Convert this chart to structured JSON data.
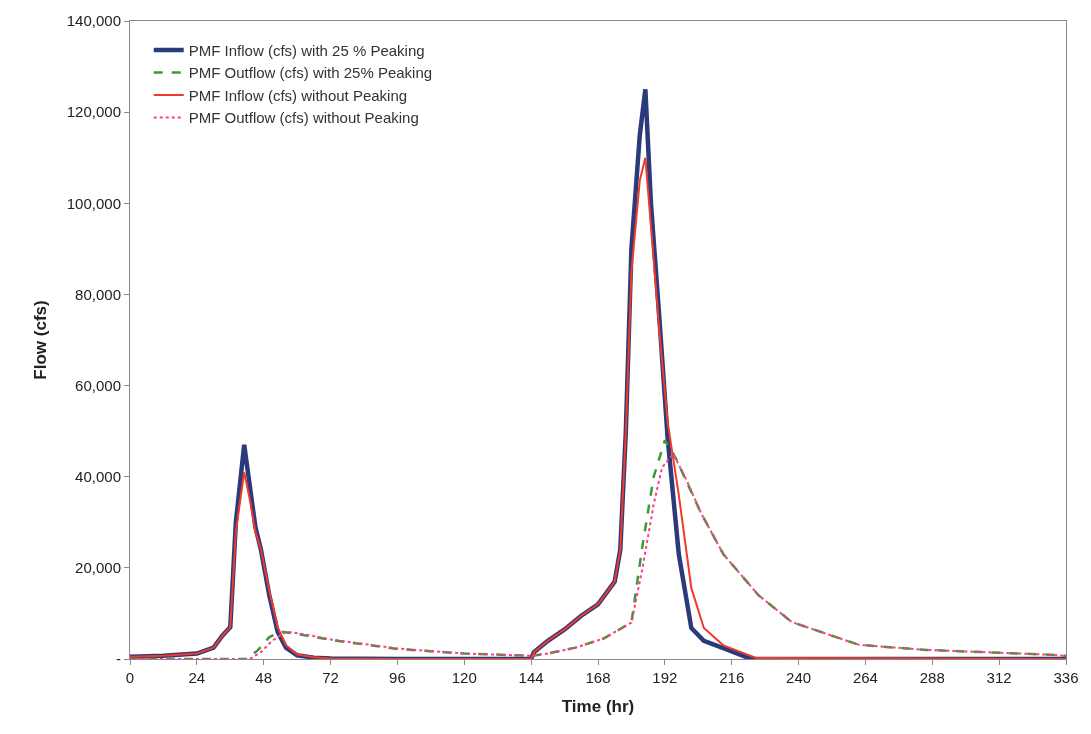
{
  "chart_data": {
    "type": "line",
    "xlabel": "Time (hr)",
    "ylabel": "Flow (cfs)",
    "xlim": [
      0,
      336
    ],
    "xticks": [
      0,
      24,
      48,
      72,
      96,
      120,
      144,
      168,
      192,
      216,
      240,
      264,
      288,
      312,
      336
    ],
    "ylim": [
      0,
      140000
    ],
    "yticks": [
      {
        "value": 0,
        "label": "-"
      },
      {
        "value": 20000,
        "label": "20,000"
      },
      {
        "value": 40000,
        "label": "40,000"
      },
      {
        "value": 60000,
        "label": "60,000"
      },
      {
        "value": 80000,
        "label": "80,000"
      },
      {
        "value": 100000,
        "label": "100,000"
      },
      {
        "value": 120000,
        "label": "120,000"
      },
      {
        "value": 140000,
        "label": "140,000"
      }
    ],
    "legend": "top left",
    "marker": "none",
    "series": [
      {
        "name": "PMF Inflow (cfs) with 25 % Peaking",
        "color": "#2b3a7a",
        "line_style": "solid",
        "x": [
          0,
          12,
          24,
          30,
          33,
          36,
          38,
          41,
          43,
          45,
          47,
          50,
          53,
          56,
          60,
          66,
          72,
          96,
          144,
          145,
          150,
          156,
          162,
          168,
          174,
          176,
          178,
          180,
          183,
          185,
          187,
          190,
          193,
          197,
          201.5,
          206,
          213,
          223,
          336
        ],
        "values": [
          500,
          700,
          1200,
          2500,
          5000,
          7000,
          30000,
          47000,
          38000,
          29000,
          24000,
          14000,
          6000,
          2500,
          800,
          300,
          100,
          0,
          0,
          1500,
          4000,
          6500,
          9500,
          12000,
          17000,
          24000,
          50000,
          90000,
          115000,
          125000,
          100000,
          75000,
          48500,
          23000,
          6800,
          4000,
          2400,
          0,
          0
        ]
      },
      {
        "name": "PMF Outflow (cfs) with 25% Peaking",
        "color": "#3a9a3a",
        "line_style": "dashed",
        "x": [
          0,
          42,
          46,
          50,
          54,
          60,
          72,
          96,
          120,
          144,
          150,
          160,
          170,
          180,
          184,
          188,
          192,
          196,
          205,
          213,
          225.6,
          237.6,
          261.7,
          285.7,
          327.7,
          336
        ],
        "values": [
          0,
          0,
          2000,
          4800,
          6000,
          5500,
          4200,
          2200,
          1200,
          700,
          1200,
          2500,
          4500,
          8000,
          25000,
          40000,
          48000,
          44000,
          32000,
          23000,
          14000,
          8100,
          3100,
          2000,
          1000,
          700
        ]
      },
      {
        "name": "PMF Inflow (cfs) without Peaking",
        "color": "#f03a2a",
        "line_style": "solid",
        "x": [
          0,
          12,
          24,
          30,
          33,
          36,
          38,
          41,
          43,
          45,
          47,
          50,
          53,
          56,
          60,
          66,
          72,
          96,
          144,
          145,
          150,
          156,
          162,
          168,
          174,
          176,
          178,
          180,
          183,
          185,
          187,
          190,
          193,
          197,
          201.5,
          206,
          213,
          225,
          336
        ],
        "values": [
          500,
          700,
          1200,
          2500,
          5000,
          7000,
          28000,
          41000,
          35000,
          28000,
          24000,
          15000,
          7000,
          3000,
          1000,
          400,
          100,
          0,
          0,
          1500,
          4000,
          6500,
          9500,
          12000,
          17000,
          24000,
          50000,
          85000,
          105000,
          110000,
          95000,
          72000,
          52000,
          36000,
          15600,
          6800,
          3000,
          200,
          0
        ]
      },
      {
        "name": "PMF Outflow (cfs) without Peaking",
        "color": "#ff3a8a",
        "line_style": "dotted",
        "x": [
          0,
          43,
          47,
          51,
          56,
          62,
          72,
          96,
          120,
          144,
          150,
          160,
          170,
          180,
          184,
          188,
          191,
          195,
          200,
          205,
          213,
          225.6,
          237.6,
          261.7,
          285.7,
          327.7,
          336
        ],
        "values": [
          0,
          0,
          1500,
          4000,
          6000,
          5500,
          4300,
          2300,
          1200,
          700,
          1200,
          2500,
          4500,
          8000,
          20000,
          34000,
          42000,
          45000,
          39000,
          32000,
          23000,
          14000,
          8100,
          3100,
          2000,
          1000,
          700
        ]
      }
    ]
  }
}
